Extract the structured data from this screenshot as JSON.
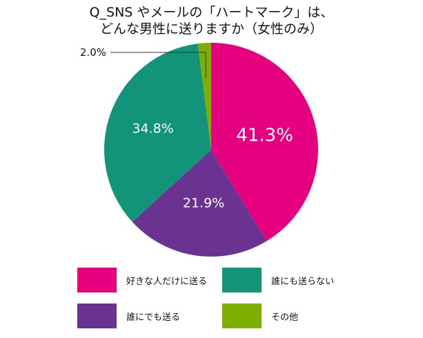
{
  "chart_data": {
    "type": "pie",
    "title_lines": [
      "Q_SNS やメールの「ハートマーク」は、",
      "どんな男性に送りますか（女性のみ）"
    ],
    "slices": [
      {
        "name": "好きな人だけに送る",
        "value": 41.3,
        "label": "41.3%",
        "color": "#e4007f"
      },
      {
        "name": "誰にでも送る",
        "value": 21.9,
        "label": "21.9%",
        "color": "#6b3391"
      },
      {
        "name": "誰にも送らない",
        "value": 34.8,
        "label": "34.8%",
        "color": "#119479"
      },
      {
        "name": "その他",
        "value": 2.0,
        "label": "2.0%",
        "color": "#7dae00"
      }
    ],
    "start_angle_deg": 0,
    "direction": "clockwise",
    "legend_position": "bottom",
    "label_color": "#ffffff",
    "callout_color": "#333333"
  }
}
